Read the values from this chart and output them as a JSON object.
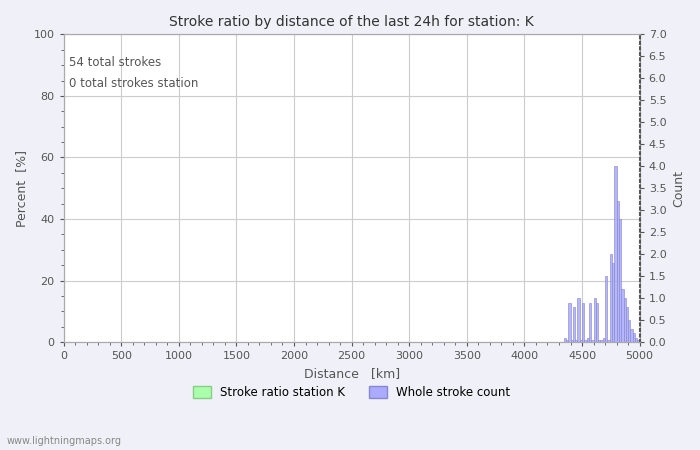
{
  "title": "Stroke ratio by distance of the last 24h for station: K",
  "xlabel": "Distance   [km]",
  "ylabel_left": "Percent  [%]",
  "ylabel_right": "Count",
  "annotation_line1": "54 total strokes",
  "annotation_line2": "0 total strokes station",
  "xlim": [
    0,
    5000
  ],
  "ylim_left": [
    0,
    100
  ],
  "ylim_right": [
    0,
    7.0
  ],
  "yticks_left": [
    0,
    20,
    40,
    60,
    80,
    100
  ],
  "yticks_right": [
    0.0,
    0.5,
    1.0,
    1.5,
    2.0,
    2.5,
    3.0,
    3.5,
    4.0,
    4.5,
    5.0,
    5.5,
    6.0,
    6.5,
    7.0
  ],
  "xticks": [
    0,
    500,
    1000,
    1500,
    2000,
    2500,
    3000,
    3500,
    4000,
    4500,
    5000
  ],
  "background_color": "#f0f0f8",
  "plot_bg_color": "#ffffff",
  "grid_color": "#cccccc",
  "bar_color": "#aaaaff",
  "bar_edge_color": "#8888cc",
  "stroke_ratio_color": "#aaffaa",
  "stroke_ratio_edge_color": "#88cc88",
  "watermark": "www.lightningmaps.org",
  "legend_labels": [
    "Stroke ratio station K",
    "Whole stroke count"
  ],
  "whole_stroke_distances": [
    4350,
    4370,
    4390,
    4410,
    4430,
    4450,
    4470,
    4490,
    4510,
    4530,
    4550,
    4570,
    4590,
    4610,
    4630,
    4650,
    4670,
    4690,
    4710,
    4730,
    4750,
    4770,
    4790,
    4810,
    4830,
    4850,
    4870,
    4890,
    4910,
    4930,
    4950,
    4970,
    4990
  ],
  "whole_stroke_counts": [
    0.1,
    0.05,
    0.9,
    0.05,
    0.8,
    0.05,
    1.0,
    0.05,
    0.9,
    0.05,
    0.1,
    0.9,
    0.05,
    1.0,
    0.9,
    0.05,
    0.05,
    0.1,
    1.5,
    0.05,
    2.0,
    1.8,
    4.0,
    3.2,
    2.8,
    1.2,
    1.0,
    0.8,
    0.5,
    0.3,
    0.2,
    0.1,
    0.05
  ]
}
